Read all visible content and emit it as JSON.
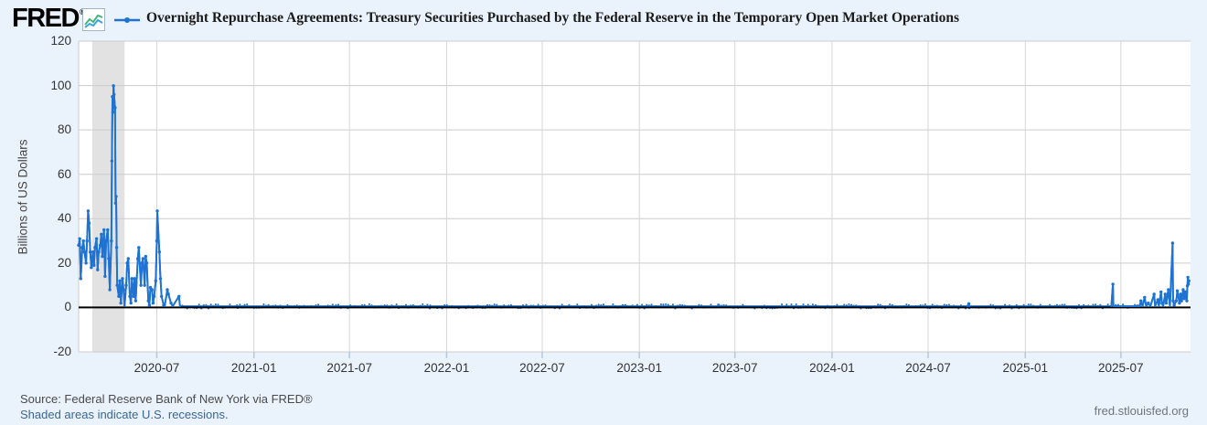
{
  "header": {
    "logo_text": "FRED",
    "registered_mark": "®",
    "series_label": "Overnight Repurchase Agreements: Treasury Securities Purchased by the Federal Reserve in the Temporary Open Market Operations"
  },
  "footer": {
    "source": "Source: Federal Reserve Bank of New York via FRED®",
    "recession_note": "Shaded areas indicate U.S. recessions.",
    "site": "fred.stlouisfed.org"
  },
  "colors": {
    "background": "#eaf2fb",
    "plot_background": "#ffffff",
    "grid": "#cccccc",
    "vertical_grid": "#d6d6d6",
    "recession_band": "#e2e2e2",
    "series": "#1e73d2",
    "zero_line": "#000000",
    "tick_mark": "#b9c7d6",
    "logo_icon_blue": "#3aa3dc",
    "logo_icon_green": "#44b378"
  },
  "chart_data": {
    "type": "line",
    "title": "Overnight Repurchase Agreements: Treasury Securities Purchased by the Federal Reserve in the Temporary Open Market Operations",
    "ylabel": "Billions of US Dollars",
    "ylim": [
      -20,
      120
    ],
    "yticks": [
      120,
      100,
      80,
      60,
      40,
      20,
      0,
      -20
    ],
    "x_domain": [
      "2020-02-04",
      "2025-11-10"
    ],
    "xticks": [
      {
        "label": "2020-07",
        "date": "2020-07-01"
      },
      {
        "label": "2021-01",
        "date": "2021-01-01"
      },
      {
        "label": "2021-07",
        "date": "2021-07-01"
      },
      {
        "label": "2022-01",
        "date": "2022-01-01"
      },
      {
        "label": "2022-07",
        "date": "2022-07-01"
      },
      {
        "label": "2023-01",
        "date": "2023-01-01"
      },
      {
        "label": "2023-07",
        "date": "2023-07-01"
      },
      {
        "label": "2024-01",
        "date": "2024-01-01"
      },
      {
        "label": "2024-07",
        "date": "2024-07-01"
      },
      {
        "label": "2025-01",
        "date": "2025-01-01"
      },
      {
        "label": "2025-07",
        "date": "2025-07-01"
      }
    ],
    "grid": true,
    "zero_line": true,
    "legend_position": "top",
    "recession_bands": [
      {
        "start": "2020-03-01",
        "end": "2020-05-01"
      }
    ],
    "points": [
      [
        "2020-02-04",
        28
      ],
      [
        "2020-02-06",
        31
      ],
      [
        "2020-02-08",
        13
      ],
      [
        "2020-02-11",
        27
      ],
      [
        "2020-02-13",
        30
      ],
      [
        "2020-02-15",
        25
      ],
      [
        "2020-02-18",
        20
      ],
      [
        "2020-02-20",
        30
      ],
      [
        "2020-02-22",
        43.5
      ],
      [
        "2020-02-24",
        38
      ],
      [
        "2020-02-26",
        25
      ],
      [
        "2020-02-28",
        18
      ],
      [
        "2020-03-02",
        25
      ],
      [
        "2020-03-04",
        19
      ],
      [
        "2020-03-06",
        27
      ],
      [
        "2020-03-09",
        31
      ],
      [
        "2020-03-11",
        17
      ],
      [
        "2020-03-13",
        25
      ],
      [
        "2020-03-16",
        28
      ],
      [
        "2020-03-18",
        33
      ],
      [
        "2020-03-20",
        23
      ],
      [
        "2020-03-23",
        35
      ],
      [
        "2020-03-25",
        14
      ],
      [
        "2020-03-27",
        30
      ],
      [
        "2020-03-30",
        35
      ],
      [
        "2020-04-01",
        22
      ],
      [
        "2020-04-03",
        8
      ],
      [
        "2020-04-06",
        30
      ],
      [
        "2020-04-07",
        66
      ],
      [
        "2020-04-08",
        95
      ],
      [
        "2020-04-09",
        88
      ],
      [
        "2020-04-10",
        99.9
      ],
      [
        "2020-04-11",
        96
      ],
      [
        "2020-04-13",
        90
      ],
      [
        "2020-04-14",
        47
      ],
      [
        "2020-04-15",
        50
      ],
      [
        "2020-04-16",
        27
      ],
      [
        "2020-04-17",
        10
      ],
      [
        "2020-04-20",
        5
      ],
      [
        "2020-04-22",
        12
      ],
      [
        "2020-04-24",
        2
      ],
      [
        "2020-04-27",
        13
      ],
      [
        "2020-04-29",
        8
      ],
      [
        "2020-05-01",
        0.5
      ],
      [
        "2020-05-04",
        10
      ],
      [
        "2020-05-06",
        20
      ],
      [
        "2020-05-08",
        22
      ],
      [
        "2020-05-11",
        5
      ],
      [
        "2020-05-13",
        2
      ],
      [
        "2020-05-15",
        13
      ],
      [
        "2020-05-18",
        5
      ],
      [
        "2020-05-20",
        13
      ],
      [
        "2020-05-22",
        3
      ],
      [
        "2020-05-26",
        22
      ],
      [
        "2020-05-28",
        27
      ],
      [
        "2020-06-01",
        10
      ],
      [
        "2020-06-03",
        20
      ],
      [
        "2020-06-05",
        22
      ],
      [
        "2020-06-08",
        10
      ],
      [
        "2020-06-10",
        23
      ],
      [
        "2020-06-12",
        20
      ],
      [
        "2020-06-15",
        3
      ],
      [
        "2020-06-17",
        1
      ],
      [
        "2020-06-19",
        9
      ],
      [
        "2020-06-22",
        8
      ],
      [
        "2020-06-24",
        2
      ],
      [
        "2020-06-26",
        5
      ],
      [
        "2020-06-29",
        12
      ],
      [
        "2020-07-01",
        30
      ],
      [
        "2020-07-02",
        43.5
      ],
      [
        "2020-07-06",
        25
      ],
      [
        "2020-07-08",
        13
      ],
      [
        "2020-07-10",
        5
      ],
      [
        "2020-07-14",
        1
      ],
      [
        "2020-07-16",
        0.3
      ],
      [
        "2020-07-21",
        8
      ],
      [
        "2020-07-23",
        6
      ],
      [
        "2020-07-28",
        2
      ],
      [
        "2020-07-31",
        0.2
      ],
      [
        "2020-08-12",
        5
      ],
      [
        "2020-08-14",
        0.2
      ],
      [
        "2020-09-01",
        0
      ],
      [
        "2020-12-01",
        0
      ],
      [
        "2021-03-01",
        0
      ],
      [
        "2021-06-01",
        0
      ],
      [
        "2021-09-01",
        0
      ],
      [
        "2021-12-01",
        0
      ],
      [
        "2022-03-01",
        0
      ],
      [
        "2022-06-01",
        0
      ],
      [
        "2022-09-01",
        0
      ],
      [
        "2022-12-01",
        0
      ],
      [
        "2023-03-01",
        0
      ],
      [
        "2023-06-01",
        0
      ],
      [
        "2023-09-01",
        0
      ],
      [
        "2023-12-01",
        0
      ],
      [
        "2024-03-01",
        0
      ],
      [
        "2024-06-03",
        0
      ],
      [
        "2024-09-13",
        0.1
      ],
      [
        "2024-09-16",
        1.7
      ],
      [
        "2024-09-17",
        0.1
      ],
      [
        "2024-12-02",
        0
      ],
      [
        "2025-03-03",
        0
      ],
      [
        "2025-06-02",
        0
      ],
      [
        "2025-06-13",
        0.2
      ],
      [
        "2025-06-16",
        10.5
      ],
      [
        "2025-06-17",
        0.3
      ],
      [
        "2025-08-06",
        0.1
      ],
      [
        "2025-08-08",
        3
      ],
      [
        "2025-08-11",
        0.2
      ],
      [
        "2025-08-15",
        4.5
      ],
      [
        "2025-08-18",
        0.3
      ],
      [
        "2025-08-22",
        2
      ],
      [
        "2025-08-26",
        0.2
      ],
      [
        "2025-09-02",
        6
      ],
      [
        "2025-09-04",
        0.5
      ],
      [
        "2025-09-09",
        3.5
      ],
      [
        "2025-09-11",
        0.3
      ],
      [
        "2025-09-15",
        7
      ],
      [
        "2025-09-17",
        2
      ],
      [
        "2025-09-19",
        0.5
      ],
      [
        "2025-09-23",
        6
      ],
      [
        "2025-09-25",
        2
      ],
      [
        "2025-09-29",
        8
      ],
      [
        "2025-09-30",
        5
      ],
      [
        "2025-10-02",
        0.5
      ],
      [
        "2025-10-07",
        29
      ],
      [
        "2025-10-08",
        3
      ],
      [
        "2025-10-10",
        1
      ],
      [
        "2025-10-14",
        3
      ],
      [
        "2025-10-16",
        7.5
      ],
      [
        "2025-10-20",
        2
      ],
      [
        "2025-10-22",
        6
      ],
      [
        "2025-10-24",
        3
      ],
      [
        "2025-10-27",
        8
      ],
      [
        "2025-10-29",
        4
      ],
      [
        "2025-10-31",
        7
      ],
      [
        "2025-11-03",
        3
      ],
      [
        "2025-11-04",
        9.7
      ],
      [
        "2025-11-05",
        13.6
      ],
      [
        "2025-11-06",
        10.5
      ],
      [
        "2025-11-07",
        12
      ]
    ]
  }
}
